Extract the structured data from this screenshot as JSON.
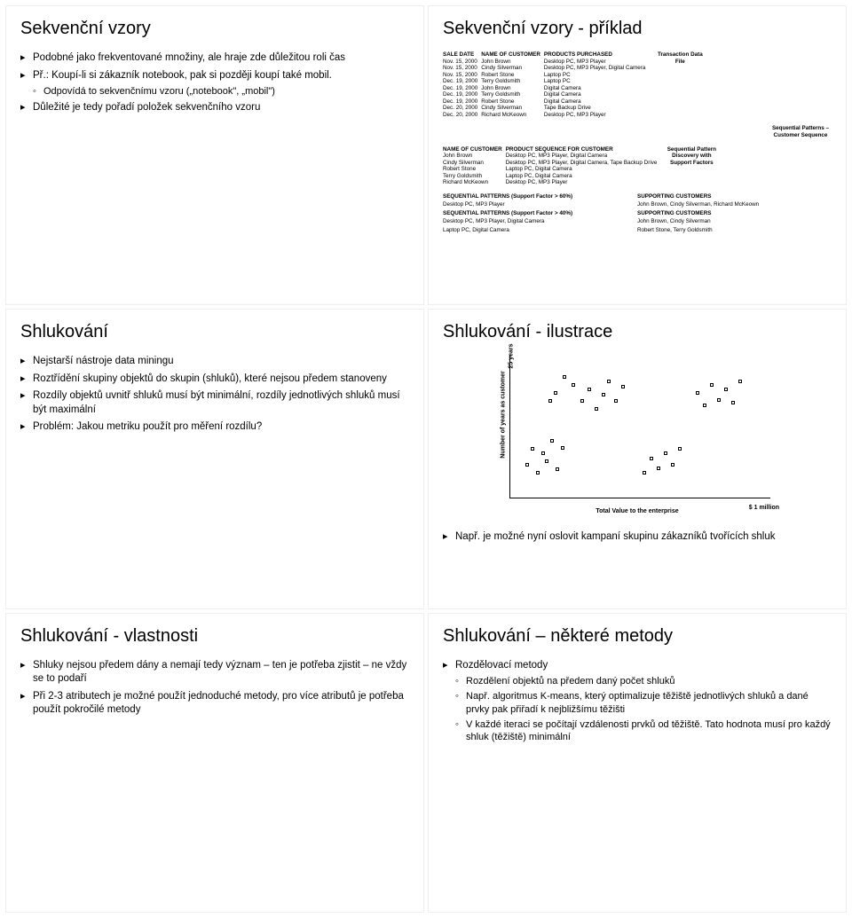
{
  "slide1": {
    "title": "Sekvenční vzory",
    "bullets": [
      {
        "text": "Podobné jako frekventované množiny, ale hraje zde důležitou roli čas"
      },
      {
        "text": "Př.: Koupí-li si zákazník notebook, pak si později koupí také mobil.",
        "sub": [
          "Odpovídá to sekvenčnímu vzoru („notebook\", „mobil\")"
        ]
      },
      {
        "text": "Důležité je tedy pořadí položek sekvenčního vzoru"
      }
    ]
  },
  "slide2": {
    "title": "Sekvenční vzory - příklad",
    "table1": {
      "headers": [
        "SALE DATE",
        "NAME OF CUSTOMER",
        "PRODUCTS PURCHASED"
      ],
      "side": "Transaction Data File",
      "rows": [
        [
          "Nov. 15, 2000",
          "John Brown",
          "Desktop PC, MP3 Player"
        ],
        [
          "Nov. 15, 2000",
          "Cindy Silverman",
          "Desktop PC, MP3 Player, Digital Camera"
        ],
        [
          "Nov. 15, 2000",
          "Robert Stone",
          "Laptop PC"
        ],
        [
          "Dec. 19, 2000",
          "Terry Goldsmith",
          "Laptop PC"
        ],
        [
          "Dec. 19, 2000",
          "John Brown",
          "Digital Camera"
        ],
        [
          "Dec. 19, 2000",
          "Terry Goldsmith",
          "Digital Camera"
        ],
        [
          "Dec. 19, 2000",
          "Robert Stone",
          "Digital Camera"
        ],
        [
          "Dec. 20, 2000",
          "Cindy Silverman",
          "Tape Backup Drive"
        ],
        [
          "Dec. 20, 2000",
          "Richard McKeown",
          "Desktop PC, MP3 Player"
        ]
      ]
    },
    "table2": {
      "headers": [
        "NAME OF CUSTOMER",
        "PRODUCT SEQUENCE FOR CUSTOMER"
      ],
      "side1": "Sequential Patterns – Customer Sequence",
      "side2": "Sequential Pattern Discovery with Support Factors",
      "rows": [
        [
          "John Brown",
          "Desktop PC, MP3 Player, Digital Camera"
        ],
        [
          "Cindy Silverman",
          "Desktop PC, MP3 Player, Digital Camera, Tape Backup Drive"
        ],
        [
          "Robert Stone",
          "Laptop PC, Digital Camera"
        ],
        [
          "Terry Goldsmith",
          "Laptop PC, Digital Camera"
        ],
        [
          "Richard McKeown",
          "Desktop PC, MP3 Player"
        ]
      ]
    },
    "patterns": [
      {
        "hdr1": "SEQUENTIAL PATTERNS (Support Factor > 60%)",
        "hdr2": "SUPPORTING CUSTOMERS",
        "v1": "Desktop PC, MP3 Player",
        "v2": "John Brown, Cindy Silverman, Richard McKeown"
      },
      {
        "hdr1": "SEQUENTIAL PATTERNS (Support Factor > 40%)",
        "hdr2": "SUPPORTING CUSTOMERS",
        "v1": "Desktop PC, MP3 Player, Digital Camera",
        "v2": "John Brown, Cindy Silverman"
      },
      {
        "hdr1": "",
        "hdr2": "",
        "v1": "Laptop PC, Digital Camera",
        "v2": "Robert Stone, Terry Goldsmith"
      }
    ]
  },
  "slide3": {
    "title": "Shlukování",
    "bullets": [
      {
        "text": "Nejstarší nástroje data miningu"
      },
      {
        "text": "Roztřídění skupiny objektů do skupin (shluků), které nejsou předem stanoveny"
      },
      {
        "text": "Rozdíly objektů uvnitř shluků musí být minimální, rozdíly jednotlivých shluků musí být maximální"
      },
      {
        "text": "Problém: Jakou metriku použít pro měření rozdílu?"
      }
    ]
  },
  "slide4": {
    "title": "Shlukování - ilustrace",
    "scatter": {
      "ylabel": "Number of years as customer",
      "yend": "25 years",
      "xlabel": "Total Value to the enterprise",
      "xend": "$ 1 million",
      "points": [
        [
          18,
          40
        ],
        [
          24,
          60
        ],
        [
          30,
          30
        ],
        [
          36,
          55
        ],
        [
          40,
          45
        ],
        [
          46,
          70
        ],
        [
          52,
          35
        ],
        [
          58,
          62
        ],
        [
          80,
          120
        ],
        [
          88,
          135
        ],
        [
          96,
          110
        ],
        [
          104,
          128
        ],
        [
          110,
          145
        ],
        [
          118,
          120
        ],
        [
          126,
          138
        ],
        [
          150,
          30
        ],
        [
          158,
          48
        ],
        [
          166,
          36
        ],
        [
          174,
          55
        ],
        [
          182,
          40
        ],
        [
          190,
          60
        ],
        [
          210,
          130
        ],
        [
          218,
          115
        ],
        [
          226,
          140
        ],
        [
          234,
          122
        ],
        [
          242,
          135
        ],
        [
          250,
          118
        ],
        [
          258,
          145
        ],
        [
          60,
          150
        ],
        [
          70,
          140
        ],
        [
          50,
          130
        ],
        [
          44,
          120
        ]
      ]
    },
    "bullets": [
      {
        "text": "Např. je možné nyní oslovit kampaní skupinu zákazníků tvořících shluk"
      }
    ]
  },
  "slide5": {
    "title": "Shlukování - vlastnosti",
    "bullets": [
      {
        "text": "Shluky nejsou předem dány a nemají tedy význam – ten je potřeba zjistit – ne vždy se to podaří"
      },
      {
        "text": "Při 2-3 atributech je možné použít jednoduché metody, pro více atributů je potřeba použít pokročilé metody"
      }
    ]
  },
  "slide6": {
    "title": "Shlukování – některé metody",
    "bullets": [
      {
        "text": "Rozdělovací metody",
        "sub": [
          "Rozdělení objektů na předem daný počet shluků",
          "Např. algoritmus K-means, který optimalizuje těžiště jednotlivých shluků a dané prvky pak přiřadí k nejbližšímu těžišti",
          "V každé iteraci se počítají vzdálenosti prvků od těžiště. Tato hodnota musí pro každý shluk (těžiště) minimální"
        ]
      }
    ]
  }
}
